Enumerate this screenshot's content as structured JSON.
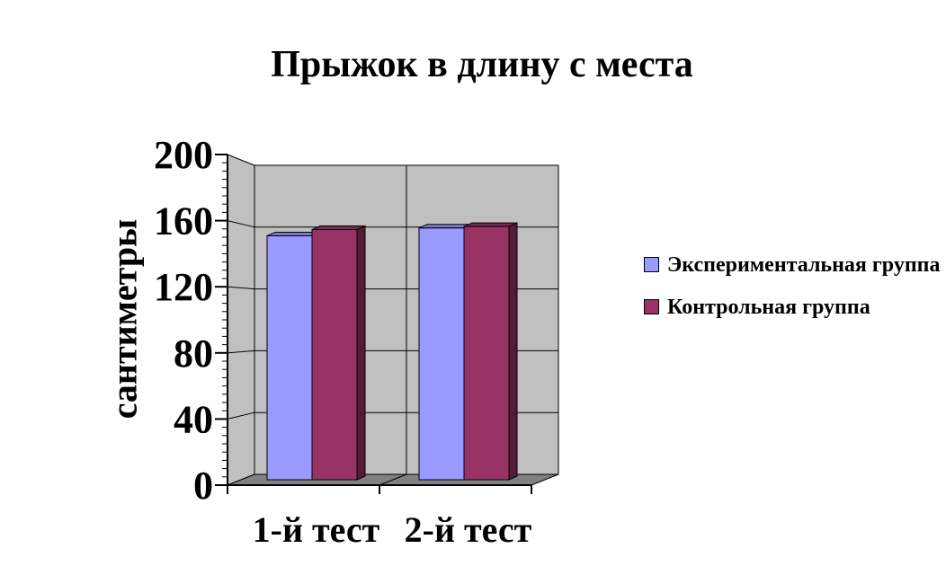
{
  "colors": {
    "wall": "#c0c0c0",
    "floor": "#808080",
    "series": [
      "#9999ff",
      "#993366"
    ]
  },
  "chart_data": {
    "type": "bar",
    "title": "Прыжок в длину с места",
    "xlabel": "",
    "ylabel": "сантиметры",
    "categories": [
      "1-й тест",
      "2-й тест"
    ],
    "series": [
      {
        "name": "Экспериментальная группа",
        "values": [
          157,
          162
        ]
      },
      {
        "name": "Контрольная группа",
        "values": [
          161,
          163
        ]
      }
    ],
    "ylim": [
      0,
      200
    ],
    "yticks": [
      0,
      40,
      80,
      120,
      160,
      200
    ],
    "grid": true,
    "legend": "right",
    "style": "3d-clustered-column"
  }
}
